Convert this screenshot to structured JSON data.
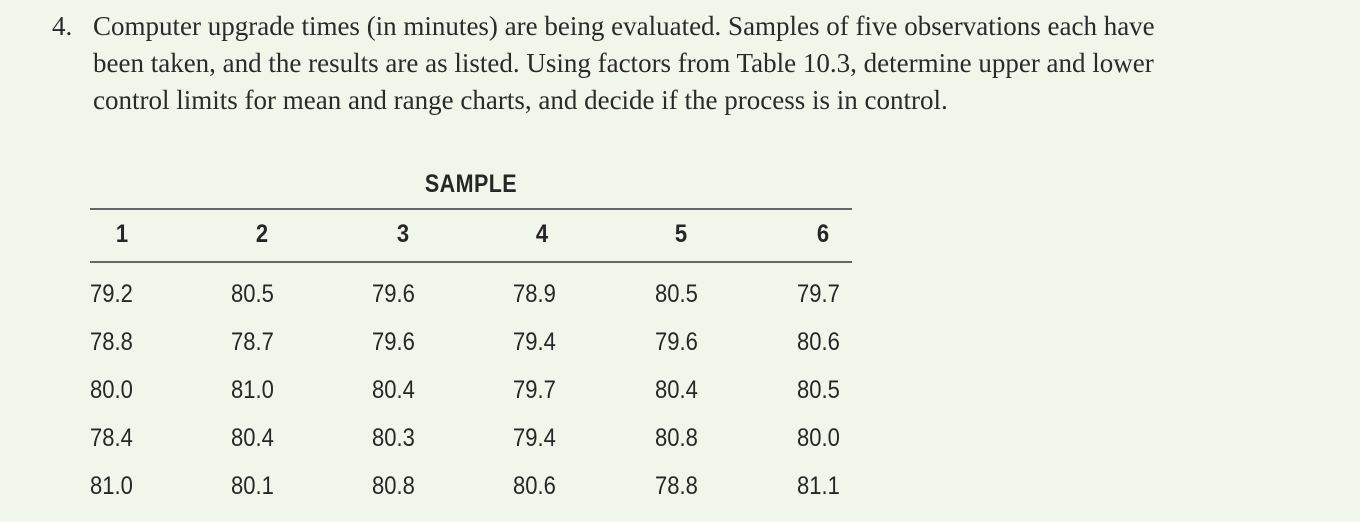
{
  "problem": {
    "number": "4.",
    "lines": [
      "Computer upgrade times (in minutes) are being evaluated. Samples of five observations each have",
      "been taken, and the results are as listed. Using factors from Table 10.3, determine upper and lower",
      "control limits for mean and range charts, and decide if the process is in control."
    ]
  },
  "table": {
    "title": "SAMPLE",
    "headers": [
      "1",
      "2",
      "3",
      "4",
      "5",
      "6"
    ],
    "rows": [
      [
        "79.2",
        "80.5",
        "79.6",
        "78.9",
        "80.5",
        "79.7"
      ],
      [
        "78.8",
        "78.7",
        "79.6",
        "79.4",
        "79.6",
        "80.6"
      ],
      [
        "80.0",
        "81.0",
        "80.4",
        "79.7",
        "80.4",
        "80.5"
      ],
      [
        "78.4",
        "80.4",
        "80.3",
        "79.4",
        "80.8",
        "80.0"
      ],
      [
        "81.0",
        "80.1",
        "80.8",
        "80.6",
        "78.8",
        "81.1"
      ]
    ]
  }
}
